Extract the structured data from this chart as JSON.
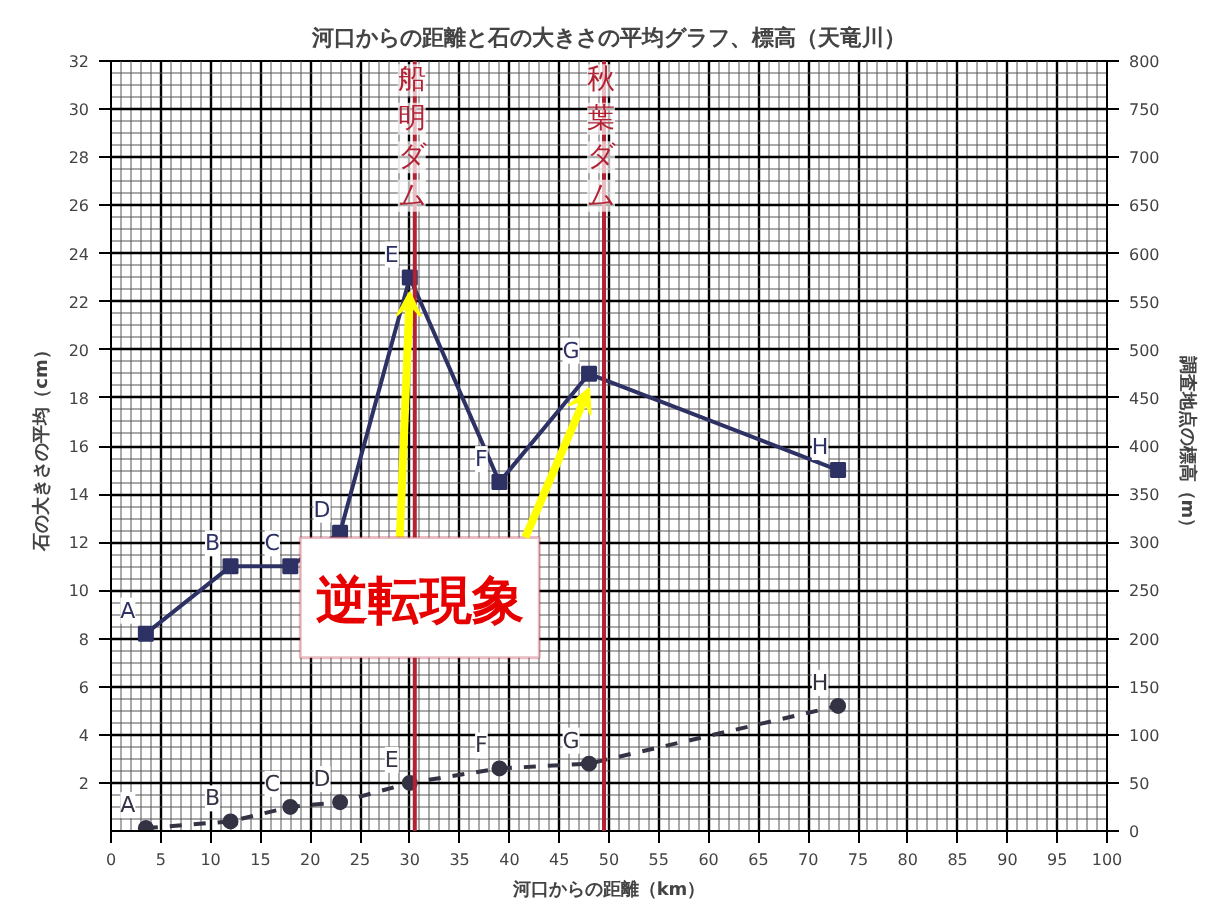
{
  "chart_data": {
    "type": "line",
    "title": "河口からの距離と石の大きさの平均グラフ、標高（天竜川）",
    "xlabel": "河口からの距離（km）",
    "ylabel": "石の大きさの平均（cm）",
    "y2label": "調査地点の標高（m）",
    "series": [
      {
        "color": "#2e3163",
        "x": [
          3.5,
          12,
          18,
          23,
          30,
          39,
          48,
          73
        ],
        "values": [
          8.2,
          11,
          11,
          12.4,
          23,
          14.5,
          19,
          15
        ],
        "value_labels": [
          "A",
          "B",
          "C",
          "D",
          "E",
          "F",
          "G",
          "H"
        ],
        "marker": "square",
        "line_style": "solid"
      },
      {
        "color": "#333344",
        "axis": "y2",
        "x": [
          3.5,
          12,
          18,
          23,
          30,
          39,
          48,
          73
        ],
        "values": [
          3,
          10,
          25,
          30,
          50,
          65,
          70,
          130
        ],
        "value_labels": [
          "A",
          "B",
          "C",
          "D",
          "E",
          "F",
          "G",
          "H"
        ],
        "marker": "circle",
        "line_style": "dashed"
      }
    ],
    "xlim": [
      0,
      100
    ],
    "xticks": [
      0,
      5,
      10,
      15,
      20,
      25,
      30,
      35,
      40,
      45,
      50,
      55,
      60,
      65,
      70,
      75,
      80,
      85,
      90,
      95,
      100
    ],
    "ylim": [
      0,
      32
    ],
    "yticks": [
      2,
      4,
      6,
      8,
      10,
      12,
      14,
      16,
      18,
      20,
      22,
      24,
      26,
      28,
      30,
      32
    ],
    "y2lim": [
      0,
      800
    ],
    "y2ticks": [
      0,
      50,
      100,
      150,
      200,
      250,
      300,
      350,
      400,
      450,
      500,
      550,
      600,
      650,
      700,
      750,
      800
    ],
    "ref_lines": [
      {
        "axis": "x",
        "value": 30.5,
        "label": "船明ダム",
        "color": "#b22234"
      },
      {
        "axis": "x",
        "value": 49.5,
        "label": "秋葉ダム",
        "color": "#b22234"
      }
    ],
    "annotations": [
      {
        "text": "逆転現象",
        "x": 30,
        "y": 23
      }
    ],
    "grid": true
  }
}
